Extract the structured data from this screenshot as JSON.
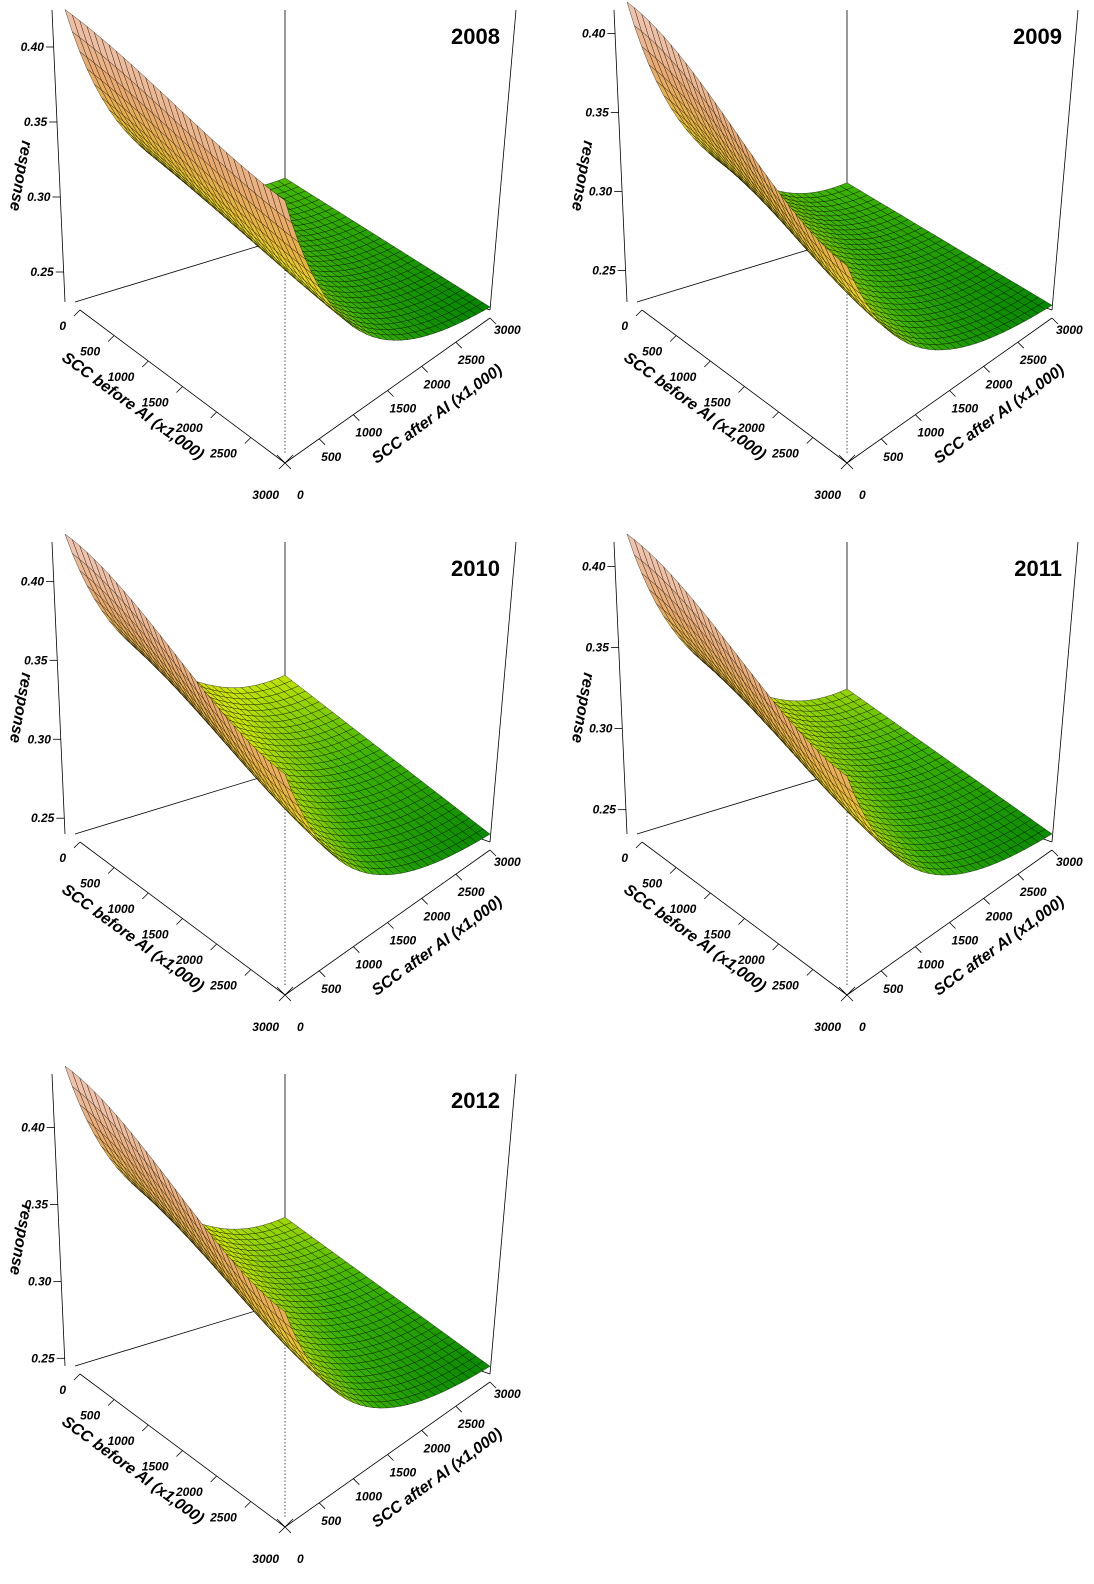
{
  "chart_data": [
    {
      "type": "surface",
      "title": "2008",
      "xlabel": "SCC before AI (x1,000)",
      "ylabel": "SCC after AI (x1,000)",
      "zlabel": "response",
      "x_ticks": [
        "0",
        "500",
        "1000",
        "1500",
        "2000",
        "2500",
        "3000"
      ],
      "y_ticks": [
        "0",
        "500",
        "1000",
        "1500",
        "2000",
        "2500",
        "3000"
      ],
      "z_ticks": [
        "0.25",
        "0.30",
        "0.35",
        "0.40"
      ],
      "zlim": [
        0.23,
        0.43
      ],
      "surface": {
        "corner_b0_a0": 0.425,
        "corner_b3000_a0": 0.405,
        "corner_b0_a3000": 0.27,
        "corner_b3000_a3000": 0.232
      }
    },
    {
      "type": "surface",
      "title": "2009",
      "xlabel": "SCC before AI (x1,000)",
      "ylabel": "SCC after AI (x1,000)",
      "zlabel": "response",
      "x_ticks": [
        "0",
        "500",
        "1000",
        "1500",
        "2000",
        "2500",
        "3000"
      ],
      "y_ticks": [
        "0",
        "500",
        "1000",
        "1500",
        "2000",
        "2500",
        "3000"
      ],
      "z_ticks": [
        "0.25",
        "0.30",
        "0.35",
        "0.40"
      ],
      "zlim": [
        0.23,
        0.42
      ],
      "surface": {
        "corner_b0_a0": 0.42,
        "corner_b3000_a0": 0.355,
        "corner_b0_a3000": 0.265,
        "corner_b3000_a3000": 0.233
      }
    },
    {
      "type": "surface",
      "title": "2010",
      "xlabel": "SCC before AI (x1,000)",
      "ylabel": "SCC after AI (x1,000)",
      "zlabel": "response",
      "x_ticks": [
        "0",
        "500",
        "1000",
        "1500",
        "2000",
        "2500",
        "3000"
      ],
      "y_ticks": [
        "0",
        "500",
        "1000",
        "1500",
        "2000",
        "2500",
        "3000"
      ],
      "z_ticks": [
        "0.25",
        "0.30",
        "0.35",
        "0.40"
      ],
      "zlim": [
        0.24,
        0.43
      ],
      "surface": {
        "corner_b0_a0": 0.43,
        "corner_b3000_a0": 0.38,
        "corner_b0_a3000": 0.3,
        "corner_b3000_a3000": 0.245
      }
    },
    {
      "type": "surface",
      "title": "2011",
      "xlabel": "SCC before AI (x1,000)",
      "ylabel": "SCC after AI (x1,000)",
      "zlabel": "response",
      "x_ticks": [
        "0",
        "500",
        "1000",
        "1500",
        "2000",
        "2500",
        "3000"
      ],
      "y_ticks": [
        "0",
        "500",
        "1000",
        "1500",
        "2000",
        "2500",
        "3000"
      ],
      "z_ticks": [
        "0.25",
        "0.30",
        "0.35",
        "0.40"
      ],
      "zlim": [
        0.235,
        0.42
      ],
      "surface": {
        "corner_b0_a0": 0.42,
        "corner_b3000_a0": 0.37,
        "corner_b0_a3000": 0.285,
        "corner_b3000_a3000": 0.24
      }
    },
    {
      "type": "surface",
      "title": "2012",
      "xlabel": "SCC before AI (x1,000)",
      "ylabel": "SCC after AI (x1,000)",
      "zlabel": "response",
      "x_ticks": [
        "0",
        "500",
        "1000",
        "1500",
        "2000",
        "2500",
        "3000"
      ],
      "y_ticks": [
        "0",
        "500",
        "1000",
        "1500",
        "2000",
        "2500",
        "3000"
      ],
      "z_ticks": [
        "0.25",
        "0.30",
        "0.35",
        "0.40"
      ],
      "zlim": [
        0.245,
        0.44
      ],
      "surface": {
        "corner_b0_a0": 0.44,
        "corner_b3000_a0": 0.385,
        "corner_b0_a3000": 0.3,
        "corner_b3000_a3000": 0.25
      }
    }
  ]
}
